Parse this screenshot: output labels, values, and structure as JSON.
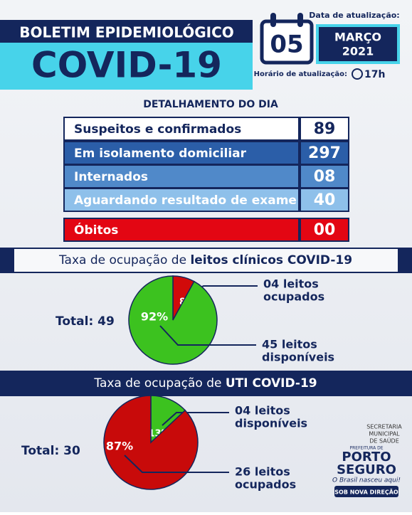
{
  "header": {
    "title": "BOLETIM EPIDEMIOLÓGICO",
    "subtitle": "COVID-19",
    "date_label": "Data de atualização:",
    "day": "05",
    "month": "MARÇO",
    "year": "2021",
    "time_label": "Horário de atualização:",
    "time": "17h"
  },
  "table": {
    "title": "DETALHAMENTO DO DIA",
    "rows": [
      [
        "Suspeitos e confirmados",
        "89"
      ],
      [
        "Em isolamento domiciliar",
        "297"
      ],
      [
        "Internados",
        "08"
      ],
      [
        "Aguardando resultado de exame",
        "40"
      ],
      [
        "Óbitos",
        "00"
      ]
    ]
  },
  "charts": [
    {
      "type": "pie",
      "title_prefix": "Taxa de ocupação de",
      "title_bold": "leitos clínicos COVID-19",
      "total": "Total: 49",
      "slices": [
        {
          "value": 8,
          "value_label": "8%",
          "color": "#d10a0a",
          "callout": [
            "04 leitos",
            "ocupados"
          ]
        },
        {
          "value": 92,
          "value_label": "92%",
          "color": "#3cc21f",
          "callout": [
            "45 leitos",
            "disponíveis"
          ]
        }
      ]
    },
    {
      "type": "pie",
      "title_prefix": "Taxa de ocupação de",
      "title_bold": "UTI COVID-19",
      "total": "Total: 30",
      "slices": [
        {
          "value": 13,
          "value_label": "13%",
          "color": "#3cc21f",
          "callout": [
            "04 leitos",
            "disponíveis"
          ]
        },
        {
          "value": 87,
          "value_label": "87%",
          "color": "#c80a0a",
          "callout": [
            "26 leitos",
            "ocupados"
          ]
        }
      ]
    }
  ],
  "footer": {
    "department": [
      "SECRETARIA",
      "MUNICIPAL",
      "DE SAÚDE"
    ],
    "prefeitura": "PREFEITURA DE",
    "city": [
      "PORTO",
      "SEGURO"
    ],
    "slogan": "O Brasil nasceu aqui!",
    "badge": "SOB NOVA DIREÇÃO"
  }
}
